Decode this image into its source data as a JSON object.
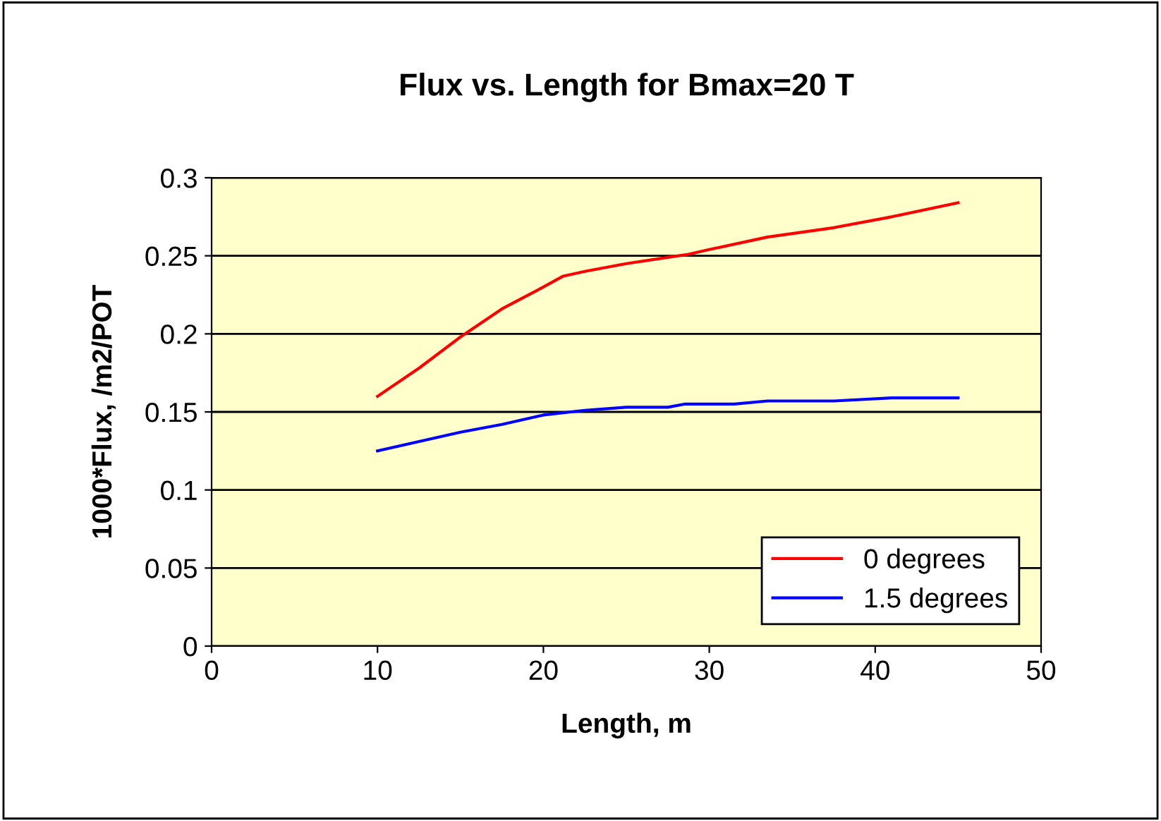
{
  "chart_data": {
    "type": "line",
    "title": "Flux vs. Length for Bmax=20 T",
    "xlabel": "Length, m",
    "ylabel": "1000*Flux, /m2/POT",
    "xlim": [
      0,
      50
    ],
    "xticks": [
      0,
      10,
      20,
      30,
      40,
      50
    ],
    "ylim": [
      0,
      0.3
    ],
    "yticks": [
      0,
      0.05,
      0.1,
      0.15,
      0.2,
      0.25,
      0.3
    ],
    "grid": "y",
    "legend": "bottom right",
    "marker": "none",
    "line_style": "solid",
    "series": [
      {
        "name": "0 degrees",
        "color": "#ff0000",
        "x": [
          10,
          12.5,
          15,
          17.5,
          20,
          21.2,
          22.5,
          25,
          27.5,
          28.75,
          30,
          33.5,
          37.5,
          41,
          45
        ],
        "values": [
          0.16,
          0.178,
          0.198,
          0.216,
          0.23,
          0.237,
          0.24,
          0.245,
          0.249,
          0.251,
          0.254,
          0.262,
          0.268,
          0.275,
          0.284
        ]
      },
      {
        "name": "1.5 degrees",
        "color": "#0000ff",
        "x": [
          10,
          12.5,
          15,
          17.5,
          20,
          22.5,
          25,
          27.5,
          28.5,
          31.5,
          33.5,
          37.5,
          41,
          45
        ],
        "values": [
          0.125,
          0.131,
          0.137,
          0.142,
          0.148,
          0.151,
          0.153,
          0.153,
          0.155,
          0.155,
          0.157,
          0.157,
          0.159,
          0.159
        ]
      }
    ]
  }
}
